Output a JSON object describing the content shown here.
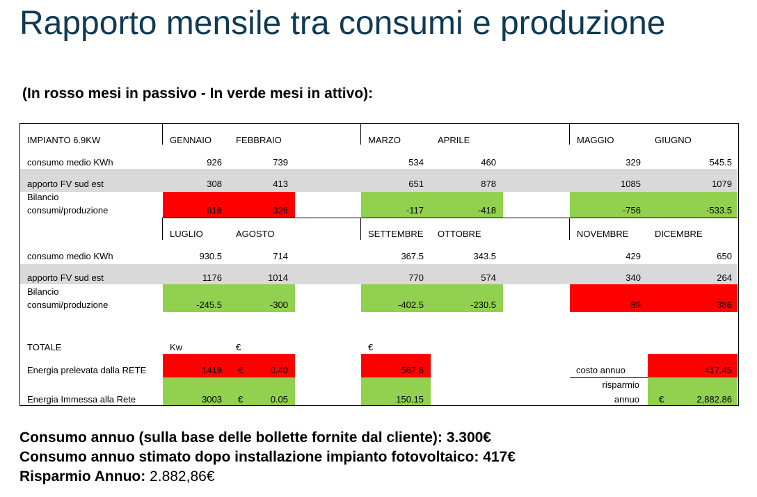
{
  "title": "Rapporto mensile tra consumi e produzione",
  "subtitle": "(In rosso mesi in passivo - In verde mesi in attivo):",
  "table": {
    "plant_label": "IMPIANTO 6.9KW",
    "row_consumption": "consumo medio KWh",
    "row_pv": "apporto FV sud est",
    "row_balance_1": "Bilancio",
    "row_balance_2": "consumi/produzione",
    "top": {
      "months": [
        "GENNAIO",
        "FEBBRAIO",
        "MARZO",
        "APRILE",
        "MAGGIO",
        "GIUGNO"
      ],
      "consumption": [
        "926",
        "739",
        "534",
        "460",
        "329",
        "545.5"
      ],
      "pv": [
        "308",
        "413",
        "651",
        "878",
        "1085",
        "1079"
      ],
      "balance": [
        "618",
        "326",
        "-117",
        "-418",
        "-756",
        "-533.5"
      ],
      "status": [
        "red",
        "red",
        "green",
        "green",
        "green",
        "green"
      ]
    },
    "bottom": {
      "months": [
        "LUGLIO",
        "AGOSTO",
        "SETTEMBRE",
        "OTTOBRE",
        "NOVEMBRE",
        "DICEMBRE"
      ],
      "consumption": [
        "930.5",
        "714",
        "367.5",
        "343.5",
        "429",
        "650"
      ],
      "pv": [
        "1176",
        "1014",
        "770",
        "574",
        "340",
        "264"
      ],
      "balance": [
        "-245.5",
        "-300",
        "-402.5",
        "-230.5",
        "89",
        "386"
      ],
      "status": [
        "green",
        "green",
        "green",
        "green",
        "red",
        "red"
      ]
    },
    "totals": {
      "label": "TOTALE",
      "unit_kw": "Kw",
      "unit_eur": "€",
      "unit_eur2": "€",
      "grid_label": "Energia prelevata dalla RETE",
      "grid_kw": "1419",
      "grid_currency": "€",
      "grid_price": "0.40",
      "grid_cost": "567.6",
      "fed_label": "Energia Immessa alla Rete",
      "fed_kw": "3003",
      "fed_currency": "€",
      "fed_price": "0.05",
      "fed_value": "150.15",
      "annual_cost_label": "costo annuo",
      "annual_cost": "417.45",
      "savings_label_1": "risparmio",
      "savings_label_2": "annuo",
      "savings_currency": "€",
      "savings_value": "2,882.86"
    }
  },
  "summary": {
    "line1": "Consumo annuo (sulla base delle bollette fornite dal cliente): 3.300€",
    "line2": "Consumo annuo stimato dopo installazione impianto fotovoltaico: 417€",
    "line3_label": "Risparmio Annuo:",
    "line3_value": " 2.882,86€"
  },
  "colors": {
    "red": "#ff0000",
    "green": "#92d050",
    "gray": "#d9d9d9",
    "title": "#0f3a52"
  }
}
